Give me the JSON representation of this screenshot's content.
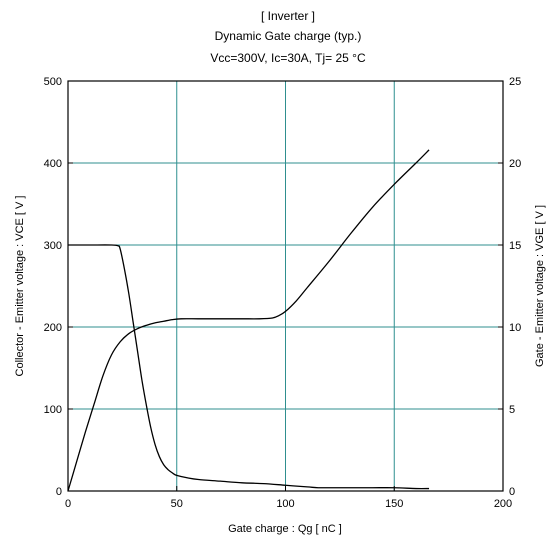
{
  "chart_data": {
    "type": "line",
    "title_lines": [
      "[ Inverter ]",
      "Dynamic Gate charge  (typ.)",
      "Vcc=300V, Ic=30A, Tj= 25  °C"
    ],
    "xlabel": "Gate charge  :  Qg  [ nC ]",
    "ylabel_left": "Collector - Emitter voltage  :  VCE  [ V ]",
    "ylabel_right": "Gate - Emitter voltage  :  VGE  [ V ]",
    "xlim": [
      0,
      200
    ],
    "ylim_left": [
      0,
      500
    ],
    "ylim_right": [
      0,
      25
    ],
    "x_ticks": [
      0,
      50,
      100,
      150,
      200
    ],
    "y_left_ticks": [
      0,
      100,
      200,
      300,
      400,
      500
    ],
    "y_right_ticks": [
      0,
      5,
      10,
      15,
      20,
      25
    ],
    "grid": true,
    "series": [
      {
        "axis": "left",
        "x": [
          0,
          10,
          20,
          23,
          24,
          26,
          28,
          30,
          32,
          34,
          36,
          38,
          40,
          42,
          44,
          46,
          48,
          50,
          55,
          60,
          70,
          80,
          90,
          100,
          110,
          115,
          120,
          130,
          140,
          150,
          160,
          166
        ],
        "y": [
          300,
          300,
          300,
          299,
          295,
          270,
          240,
          205,
          170,
          135,
          105,
          78,
          57,
          42,
          32,
          26,
          22,
          19,
          16,
          14,
          12,
          10,
          9,
          7,
          5,
          4,
          4,
          4,
          4,
          4,
          3,
          3
        ]
      },
      {
        "axis": "right",
        "x": [
          0,
          4,
          8,
          12,
          16,
          20,
          24,
          28,
          32,
          36,
          40,
          44,
          48,
          52,
          60,
          70,
          80,
          88,
          94,
          97,
          100,
          105,
          110,
          120,
          130,
          140,
          150,
          160,
          166
        ],
        "y": [
          0,
          1.8,
          3.6,
          5.3,
          7.0,
          8.3,
          9.1,
          9.6,
          9.9,
          10.1,
          10.25,
          10.35,
          10.45,
          10.5,
          10.5,
          10.5,
          10.5,
          10.5,
          10.55,
          10.7,
          10.95,
          11.6,
          12.4,
          14.0,
          15.7,
          17.3,
          18.7,
          20.0,
          20.8
        ]
      }
    ]
  }
}
